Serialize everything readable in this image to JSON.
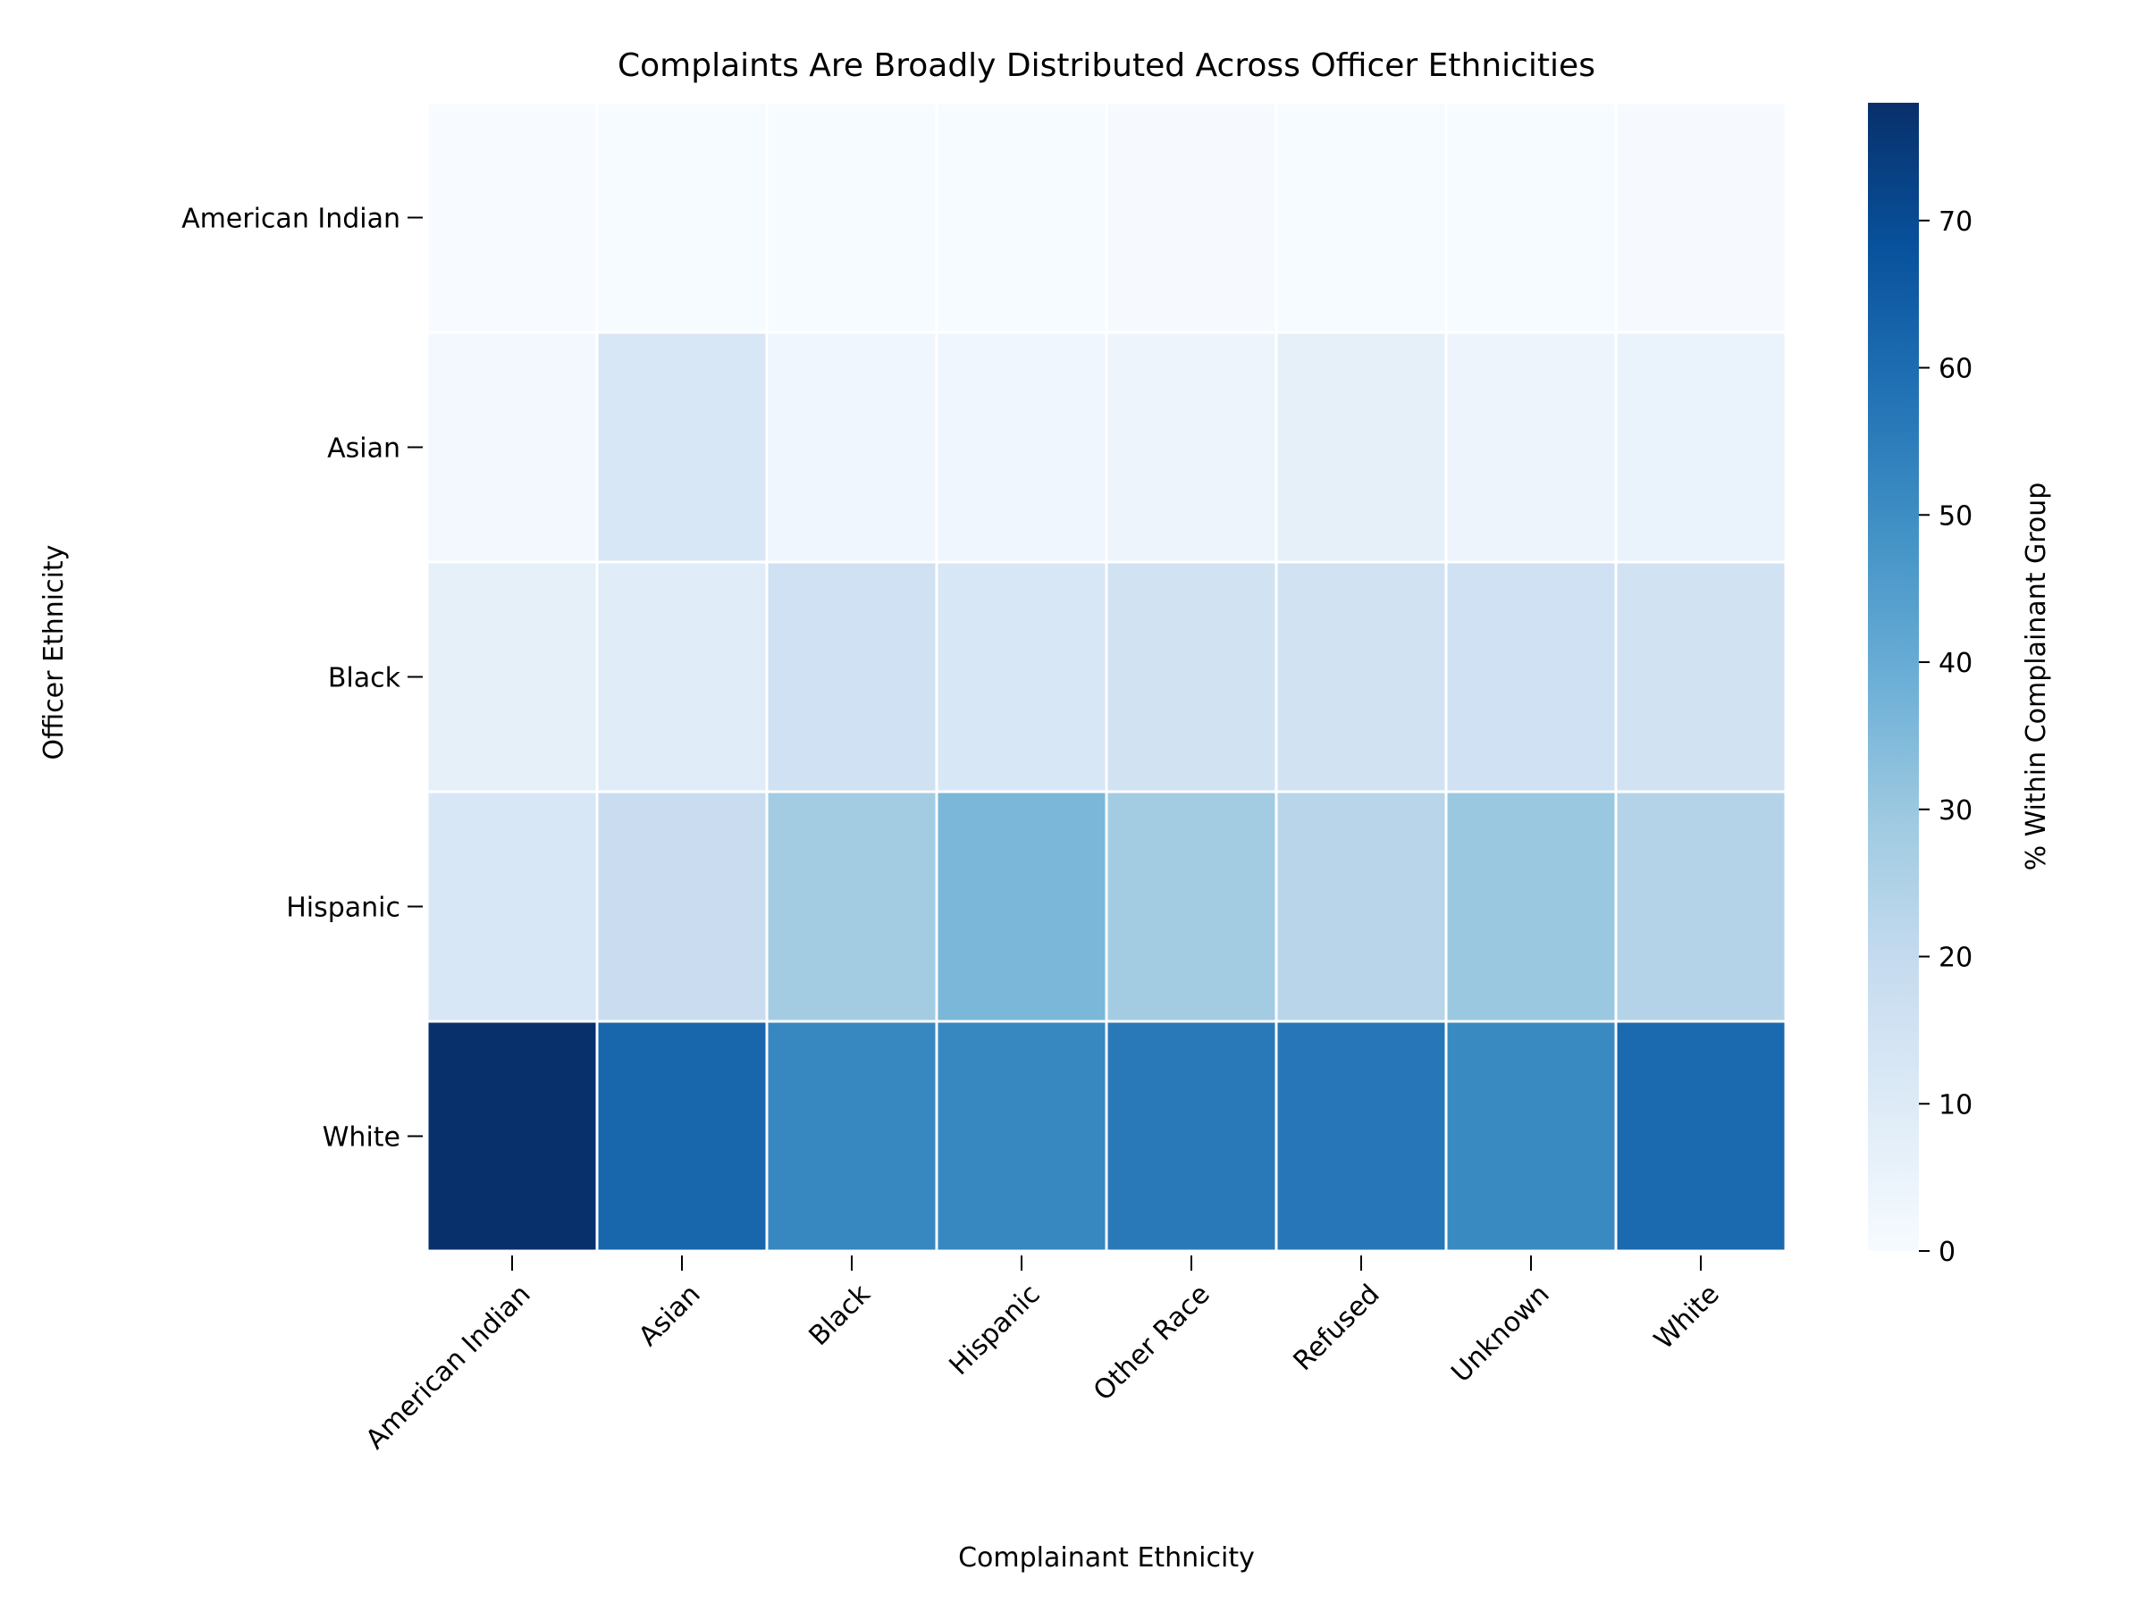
{
  "chart_data": {
    "type": "heatmap",
    "title": "Complaints Are Broadly Distributed Across Officer Ethnicities",
    "xlabel": "Complainant Ethnicity",
    "ylabel": "Officer Ethnicity",
    "x_categories": [
      "American Indian",
      "Asian",
      "Black",
      "Hispanic",
      "Other Race",
      "Refused",
      "Unknown",
      "White"
    ],
    "y_categories": [
      "American Indian",
      "Asian",
      "Black",
      "Hispanic",
      "White"
    ],
    "values": [
      [
        0.0,
        0.3,
        0.3,
        0.3,
        0.5,
        0.3,
        0.2,
        0.4
      ],
      [
        2.0,
        12.0,
        3.0,
        3.0,
        4.0,
        7.0,
        4.0,
        5.0
      ],
      [
        7.0,
        9.0,
        16.0,
        12.0,
        15.0,
        15.0,
        16.0,
        15.0
      ],
      [
        12.0,
        18.0,
        28.0,
        36.0,
        28.0,
        23.0,
        30.0,
        24.0
      ],
      [
        78.0,
        62.0,
        52.0,
        52.0,
        56.0,
        57.0,
        51.0,
        61.0
      ]
    ],
    "colorbar": {
      "label": "% Within Complainant Group",
      "range": [
        0,
        78
      ],
      "ticks": [
        0,
        10,
        20,
        30,
        40,
        50,
        60,
        70
      ]
    },
    "colormap": "Blues",
    "grid": false,
    "legend": "colorbar-right"
  }
}
